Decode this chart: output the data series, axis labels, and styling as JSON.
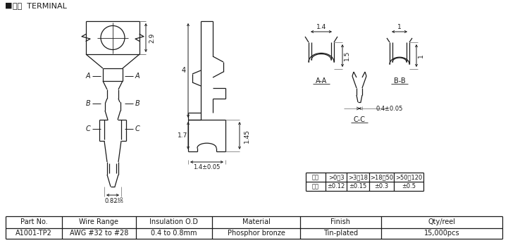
{
  "title_square": "■",
  "title_text": "  端子 TERMINAL",
  "bg_color": "#ffffff",
  "line_color": "#1a1a1a",
  "table_headers": [
    "Part No.",
    "Wire Range",
    "Insulation O.D",
    "Material",
    "Finish",
    "Qty/reel"
  ],
  "table_values": [
    "A1001-TP2",
    "AWG #32 to #28",
    "0.4 to 0.8mm",
    "Phosphor bronze",
    "Tin-plated",
    "15,000pcs"
  ],
  "tolerance_headers": [
    "范囲",
    ">0～3",
    ">3～18",
    ">18～50",
    ">50～120"
  ],
  "tolerance_values": [
    "公差",
    "±0.12",
    "±0.15",
    "±0.3",
    "±0.5"
  ]
}
